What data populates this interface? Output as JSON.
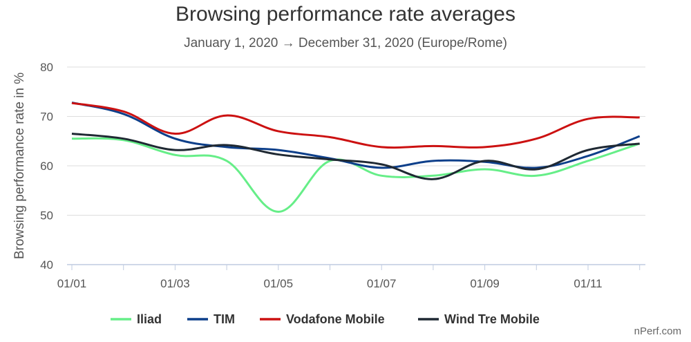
{
  "chart_data": {
    "type": "line",
    "title": "Browsing performance rate averages",
    "subtitle": "January 1, 2020 → December 31, 2020 (Europe/Rome)",
    "xlabel": "",
    "ylabel": "Browsing performance rate in %",
    "ylim": [
      40,
      80
    ],
    "yticks": [
      40,
      50,
      60,
      70,
      80
    ],
    "x": [
      "01/01",
      "01/02",
      "01/03",
      "01/04",
      "01/05",
      "01/06",
      "01/07",
      "01/08",
      "01/09",
      "01/10",
      "01/11",
      "01/12"
    ],
    "xtick_labels": [
      "01/01",
      "01/03",
      "01/05",
      "01/07",
      "01/09",
      "01/11"
    ],
    "grid": true,
    "legend_position": "bottom",
    "series": [
      {
        "name": "Iliad",
        "color": "#66ee88",
        "values": [
          65.5,
          65.2,
          62.2,
          61.0,
          50.7,
          61.0,
          58.0,
          58.0,
          59.3,
          58.0,
          61.0,
          64.5
        ]
      },
      {
        "name": "TIM",
        "color": "#0d3f8a",
        "values": [
          72.8,
          70.5,
          65.5,
          63.8,
          63.2,
          61.5,
          59.6,
          61.0,
          60.8,
          59.6,
          62.0,
          66.0
        ]
      },
      {
        "name": "Vodafone Mobile",
        "color": "#cc1111",
        "values": [
          72.7,
          71.0,
          66.5,
          70.2,
          67.0,
          65.8,
          63.8,
          64.0,
          63.8,
          65.5,
          69.5,
          69.8
        ]
      },
      {
        "name": "Wind Tre Mobile",
        "color": "#1f2933",
        "values": [
          66.5,
          65.5,
          63.2,
          64.2,
          62.3,
          61.3,
          60.3,
          57.3,
          61.0,
          59.3,
          63.2,
          64.5
        ]
      }
    ]
  },
  "credit": "nPerf.com"
}
